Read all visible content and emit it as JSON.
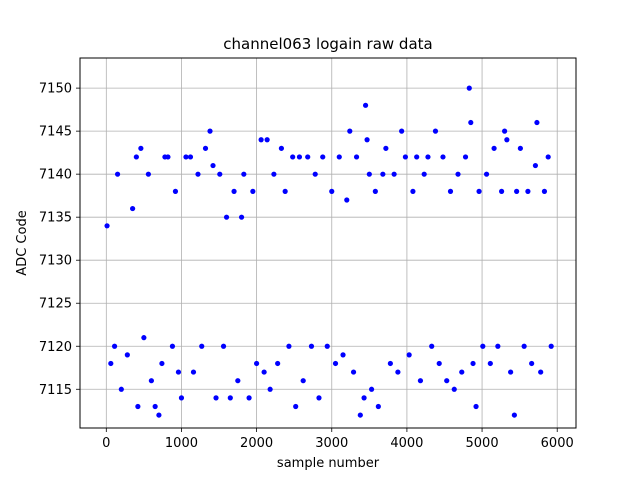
{
  "chart_data": {
    "type": "scatter",
    "title": "channel063 logain raw data",
    "xlabel": "sample number",
    "ylabel": "ADC Code",
    "xlim": [
      -350,
      6250
    ],
    "ylim": [
      7110.5,
      7153.5
    ],
    "x_ticks": [
      0,
      1000,
      2000,
      3000,
      4000,
      5000,
      6000
    ],
    "y_ticks": [
      7115,
      7120,
      7125,
      7130,
      7135,
      7140,
      7145,
      7150
    ],
    "x_tick_labels": [
      "0",
      "1000",
      "2000",
      "3000",
      "4000",
      "5000",
      "6000"
    ],
    "y_tick_labels": [
      "7115",
      "7120",
      "7125",
      "7130",
      "7135",
      "7140",
      "7145",
      "7150"
    ],
    "grid": true,
    "marker_color": "#0000ff",
    "series": [
      {
        "points": [
          [
            10,
            7134
          ],
          [
            60,
            7118
          ],
          [
            110,
            7120
          ],
          [
            150,
            7140
          ],
          [
            200,
            7115
          ],
          [
            280,
            7119
          ],
          [
            350,
            7136
          ],
          [
            400,
            7142
          ],
          [
            420,
            7113
          ],
          [
            460,
            7143
          ],
          [
            500,
            7121
          ],
          [
            560,
            7140
          ],
          [
            600,
            7116
          ],
          [
            650,
            7113
          ],
          [
            700,
            7112
          ],
          [
            740,
            7118
          ],
          [
            780,
            7142
          ],
          [
            820,
            7142
          ],
          [
            880,
            7120
          ],
          [
            920,
            7138
          ],
          [
            960,
            7117
          ],
          [
            1000,
            7114
          ],
          [
            1060,
            7142
          ],
          [
            1120,
            7142
          ],
          [
            1160,
            7117
          ],
          [
            1220,
            7140
          ],
          [
            1270,
            7120
          ],
          [
            1320,
            7143
          ],
          [
            1380,
            7145
          ],
          [
            1420,
            7141
          ],
          [
            1460,
            7114
          ],
          [
            1510,
            7140
          ],
          [
            1560,
            7120
          ],
          [
            1600,
            7135
          ],
          [
            1650,
            7114
          ],
          [
            1700,
            7138
          ],
          [
            1750,
            7116
          ],
          [
            1800,
            7135
          ],
          [
            1830,
            7140
          ],
          [
            1900,
            7114
          ],
          [
            1950,
            7138
          ],
          [
            2000,
            7118
          ],
          [
            2060,
            7144
          ],
          [
            2100,
            7117
          ],
          [
            2140,
            7144
          ],
          [
            2180,
            7115
          ],
          [
            2230,
            7140
          ],
          [
            2280,
            7118
          ],
          [
            2330,
            7143
          ],
          [
            2380,
            7138
          ],
          [
            2430,
            7120
          ],
          [
            2480,
            7142
          ],
          [
            2520,
            7113
          ],
          [
            2570,
            7142
          ],
          [
            2620,
            7116
          ],
          [
            2680,
            7142
          ],
          [
            2730,
            7120
          ],
          [
            2780,
            7140
          ],
          [
            2830,
            7114
          ],
          [
            2880,
            7142
          ],
          [
            2940,
            7120
          ],
          [
            3000,
            7138
          ],
          [
            3050,
            7118
          ],
          [
            3100,
            7142
          ],
          [
            3150,
            7119
          ],
          [
            3200,
            7137
          ],
          [
            3240,
            7145
          ],
          [
            3290,
            7117
          ],
          [
            3330,
            7142
          ],
          [
            3380,
            7112
          ],
          [
            3430,
            7114
          ],
          [
            3450,
            7148
          ],
          [
            3470,
            7144
          ],
          [
            3500,
            7140
          ],
          [
            3530,
            7115
          ],
          [
            3580,
            7138
          ],
          [
            3620,
            7113
          ],
          [
            3680,
            7140
          ],
          [
            3720,
            7143
          ],
          [
            3780,
            7118
          ],
          [
            3830,
            7140
          ],
          [
            3880,
            7117
          ],
          [
            3930,
            7145
          ],
          [
            3980,
            7142
          ],
          [
            4030,
            7119
          ],
          [
            4080,
            7138
          ],
          [
            4130,
            7142
          ],
          [
            4180,
            7116
          ],
          [
            4230,
            7140
          ],
          [
            4280,
            7142
          ],
          [
            4330,
            7120
          ],
          [
            4380,
            7145
          ],
          [
            4430,
            7118
          ],
          [
            4480,
            7142
          ],
          [
            4530,
            7116
          ],
          [
            4580,
            7138
          ],
          [
            4630,
            7115
          ],
          [
            4680,
            7140
          ],
          [
            4730,
            7117
          ],
          [
            4780,
            7142
          ],
          [
            4830,
            7150
          ],
          [
            4850,
            7146
          ],
          [
            4880,
            7118
          ],
          [
            4920,
            7113
          ],
          [
            4960,
            7138
          ],
          [
            5010,
            7120
          ],
          [
            5060,
            7140
          ],
          [
            5110,
            7118
          ],
          [
            5160,
            7143
          ],
          [
            5210,
            7120
          ],
          [
            5260,
            7138
          ],
          [
            5300,
            7145
          ],
          [
            5330,
            7144
          ],
          [
            5380,
            7117
          ],
          [
            5430,
            7112
          ],
          [
            5460,
            7138
          ],
          [
            5510,
            7143
          ],
          [
            5560,
            7120
          ],
          [
            5610,
            7138
          ],
          [
            5660,
            7118
          ],
          [
            5710,
            7141
          ],
          [
            5730,
            7146
          ],
          [
            5780,
            7117
          ],
          [
            5830,
            7138
          ],
          [
            5880,
            7142
          ],
          [
            5920,
            7120
          ]
        ]
      }
    ]
  }
}
